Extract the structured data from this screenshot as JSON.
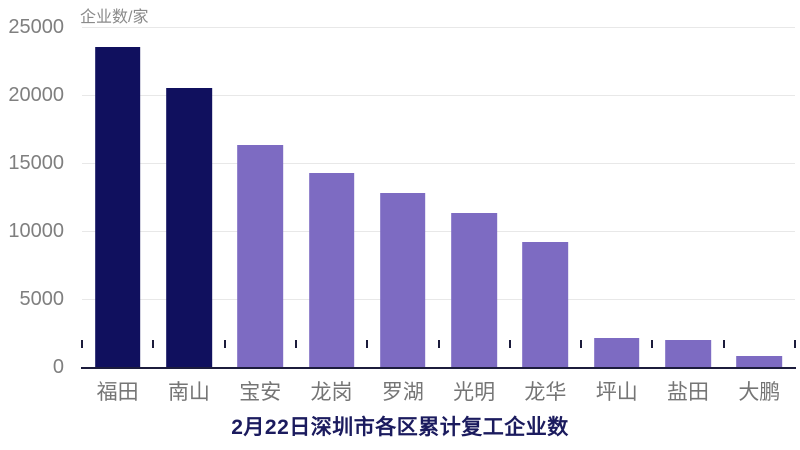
{
  "chart_data": {
    "type": "bar",
    "title": "2月22日深圳市各区累计复工企业数",
    "ylabel": "企业数/家",
    "xlabel": "",
    "categories": [
      "福田",
      "南山",
      "宝安",
      "龙岗",
      "罗湖",
      "光明",
      "龙华",
      "坪山",
      "盐田",
      "大鹏"
    ],
    "values": [
      23500,
      20500,
      16300,
      14300,
      12800,
      11300,
      9200,
      2100,
      2000,
      800
    ],
    "ylim": [
      0,
      25000
    ],
    "ytick_step": 5000,
    "ytick_labels": [
      "0",
      "5000",
      "10000",
      "15000",
      "20000",
      "25000"
    ],
    "grid": true,
    "legend": false,
    "colors": {
      "highlight_bar": "#10105e",
      "normal_bar": "#7d6bc2",
      "highlight_count": 2,
      "gridline": "#e8e8e8",
      "axis_line": "#1c1c3c",
      "tick_label": "#7f7f7f",
      "category_label": "#757575",
      "title_text": "#1b1b5e",
      "axis_title_text": "#8a8a8a",
      "background": "#ffffff"
    }
  }
}
